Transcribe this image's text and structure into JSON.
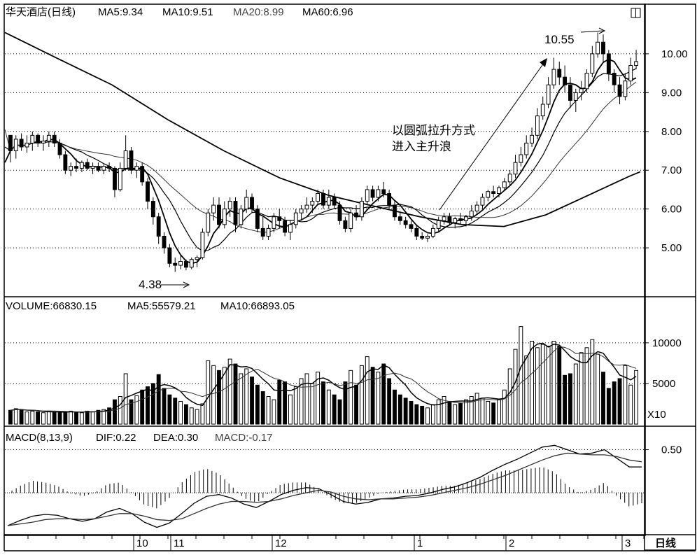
{
  "header": {
    "title": "华天酒店(日线)",
    "ma5": "MA5:9.34",
    "ma10": "MA10:9.51",
    "ma20": "MA20:8.99",
    "ma60": "MA60:6.96"
  },
  "volume_header": {
    "label": "VOLUME:66830.15",
    "ma5": "MA5:55579.21",
    "ma10": "MA10:66893.05"
  },
  "macd_header": {
    "label": "MACD(8,13,9)",
    "dif": "DIF:0.22",
    "dea": "DEA:0.30",
    "macd": "MACD:-0.17"
  },
  "annotations": {
    "low": "4.38",
    "high": "10.55",
    "text_line1": "以圆弧拉升方式",
    "text_line2": "进入主升浪"
  },
  "price_axis": [
    "10.00",
    "9.00",
    "8.00",
    "7.00",
    "6.00",
    "5.00"
  ],
  "volume_axis": [
    "10000",
    "5000"
  ],
  "volume_unit": "X10",
  "macd_axis": [
    "0.50"
  ],
  "period_label": "日线",
  "month_labels": [
    "10",
    "11",
    "12",
    "1",
    "2",
    "3"
  ],
  "colors": {
    "up": "#000000",
    "down": "#000000",
    "grid": "#000000"
  },
  "chart_data": {
    "type": "candlestick",
    "price_ylim": [
      4.1,
      10.9
    ],
    "price_ticks": [
      5,
      6,
      7,
      8,
      9,
      10
    ],
    "volume_ylim": [
      0,
      13000
    ],
    "volume_ticks": [
      5000,
      10000
    ],
    "macd_ylim": [
      -0.42,
      0.65
    ],
    "macd_ticks": [
      0.5
    ],
    "grid": "dotted",
    "ohlc": [
      [
        7.9,
        7.9,
        7.2,
        7.5
      ],
      [
        7.5,
        7.9,
        7.3,
        7.8
      ],
      [
        7.8,
        7.95,
        7.5,
        7.6
      ],
      [
        7.6,
        7.9,
        7.45,
        7.7
      ],
      [
        7.7,
        8.0,
        7.5,
        7.9
      ],
      [
        7.9,
        7.95,
        7.6,
        7.7
      ],
      [
        7.7,
        7.9,
        7.5,
        7.75
      ],
      [
        7.75,
        8.0,
        7.6,
        7.9
      ],
      [
        7.9,
        8.0,
        7.6,
        7.7
      ],
      [
        7.7,
        7.8,
        7.3,
        7.4
      ],
      [
        7.4,
        7.5,
        6.9,
        7.0
      ],
      [
        7.0,
        7.2,
        6.85,
        7.1
      ],
      [
        7.1,
        7.3,
        6.95,
        7.05
      ],
      [
        7.05,
        7.25,
        6.95,
        7.2
      ],
      [
        7.2,
        7.3,
        7.0,
        7.05
      ],
      [
        7.05,
        7.2,
        6.9,
        7.1
      ],
      [
        7.1,
        7.2,
        6.95,
        7.0
      ],
      [
        7.0,
        7.15,
        6.9,
        7.1
      ],
      [
        7.1,
        7.2,
        6.95,
        7.05
      ],
      [
        7.05,
        7.1,
        6.3,
        6.5
      ],
      [
        6.5,
        7.2,
        6.45,
        7.05
      ],
      [
        7.05,
        7.9,
        7.0,
        7.5
      ],
      [
        7.5,
        7.6,
        6.9,
        7.0
      ],
      [
        7.0,
        7.2,
        6.8,
        7.1
      ],
      [
        7.1,
        7.2,
        6.6,
        6.7
      ],
      [
        6.7,
        6.8,
        6.0,
        6.2
      ],
      [
        6.2,
        6.3,
        5.6,
        5.8
      ],
      [
        5.8,
        5.9,
        5.1,
        5.3
      ],
      [
        5.3,
        5.4,
        4.85,
        5.0
      ],
      [
        5.0,
        5.1,
        4.5,
        4.6
      ],
      [
        4.6,
        4.75,
        4.38,
        4.55
      ],
      [
        4.55,
        4.8,
        4.45,
        4.65
      ],
      [
        4.65,
        4.7,
        4.42,
        4.5
      ],
      [
        4.5,
        4.75,
        4.45,
        4.7
      ],
      [
        4.7,
        4.8,
        4.5,
        4.75
      ],
      [
        4.75,
        5.5,
        4.7,
        5.4
      ],
      [
        5.4,
        6.0,
        5.3,
        5.9
      ],
      [
        5.9,
        6.3,
        5.7,
        6.1
      ],
      [
        6.1,
        6.3,
        5.5,
        5.6
      ],
      [
        5.6,
        6.2,
        5.5,
        6.0
      ],
      [
        6.0,
        6.3,
        5.8,
        6.2
      ],
      [
        6.2,
        6.3,
        5.4,
        5.6
      ],
      [
        5.6,
        6.1,
        5.5,
        6.0
      ],
      [
        6.0,
        6.5,
        5.9,
        6.3
      ],
      [
        6.3,
        6.4,
        5.9,
        6.0
      ],
      [
        6.0,
        6.1,
        5.4,
        5.5
      ],
      [
        5.5,
        5.8,
        5.2,
        5.3
      ],
      [
        5.3,
        5.6,
        5.2,
        5.5
      ],
      [
        5.5,
        5.9,
        5.4,
        5.8
      ],
      [
        5.8,
        6.0,
        5.5,
        5.7
      ],
      [
        5.7,
        5.8,
        5.3,
        5.4
      ],
      [
        5.4,
        5.7,
        5.2,
        5.6
      ],
      [
        5.6,
        6.0,
        5.5,
        5.9
      ],
      [
        5.9,
        6.1,
        5.7,
        6.0
      ],
      [
        6.0,
        6.3,
        5.9,
        6.1
      ],
      [
        6.1,
        6.3,
        5.9,
        6.2
      ],
      [
        6.2,
        6.5,
        6.1,
        6.4
      ],
      [
        6.4,
        6.5,
        6.0,
        6.1
      ],
      [
        6.1,
        6.5,
        6.0,
        6.3
      ],
      [
        6.3,
        6.4,
        6.0,
        6.1
      ],
      [
        6.1,
        6.2,
        5.6,
        5.7
      ],
      [
        5.7,
        5.8,
        5.4,
        5.5
      ],
      [
        5.5,
        6.0,
        5.4,
        5.9
      ],
      [
        5.9,
        6.1,
        5.7,
        5.8
      ],
      [
        5.8,
        6.3,
        5.7,
        6.2
      ],
      [
        6.2,
        6.6,
        6.1,
        6.5
      ],
      [
        6.5,
        6.6,
        6.2,
        6.3
      ],
      [
        6.3,
        6.6,
        6.2,
        6.5
      ],
      [
        6.5,
        6.7,
        6.3,
        6.4
      ],
      [
        6.4,
        6.5,
        6.0,
        6.1
      ],
      [
        6.1,
        6.2,
        5.7,
        5.8
      ],
      [
        5.8,
        5.9,
        5.6,
        5.7
      ],
      [
        5.7,
        5.8,
        5.5,
        5.6
      ],
      [
        5.6,
        5.7,
        5.4,
        5.5
      ],
      [
        5.5,
        5.6,
        5.2,
        5.3
      ],
      [
        5.3,
        5.4,
        5.2,
        5.25
      ],
      [
        5.25,
        5.35,
        5.15,
        5.3
      ],
      [
        5.3,
        5.6,
        5.25,
        5.5
      ],
      [
        5.5,
        5.8,
        5.4,
        5.7
      ],
      [
        5.7,
        5.9,
        5.6,
        5.8
      ],
      [
        5.8,
        5.9,
        5.6,
        5.65
      ],
      [
        5.65,
        5.8,
        5.5,
        5.75
      ],
      [
        5.75,
        5.9,
        5.6,
        5.7
      ],
      [
        5.7,
        5.85,
        5.55,
        5.8
      ],
      [
        5.8,
        6.1,
        5.7,
        5.95
      ],
      [
        5.95,
        6.2,
        5.85,
        6.1
      ],
      [
        6.1,
        6.4,
        6.0,
        6.3
      ],
      [
        6.3,
        6.5,
        6.2,
        6.45
      ],
      [
        6.45,
        6.6,
        6.3,
        6.4
      ],
      [
        6.4,
        6.6,
        6.3,
        6.55
      ],
      [
        6.55,
        6.8,
        6.5,
        6.7
      ],
      [
        6.7,
        7.0,
        6.6,
        6.9
      ],
      [
        6.9,
        7.4,
        6.8,
        7.2
      ],
      [
        7.2,
        7.6,
        7.1,
        7.4
      ],
      [
        7.4,
        7.9,
        7.3,
        7.7
      ],
      [
        7.7,
        8.1,
        7.6,
        7.9
      ],
      [
        7.9,
        8.6,
        7.8,
        8.4
      ],
      [
        8.4,
        8.9,
        8.3,
        8.7
      ],
      [
        8.7,
        9.4,
        8.6,
        9.2
      ],
      [
        9.2,
        9.9,
        9.1,
        9.6
      ],
      [
        9.6,
        9.8,
        9.2,
        9.4
      ],
      [
        9.4,
        9.7,
        9.0,
        9.2
      ],
      [
        9.2,
        9.4,
        8.6,
        8.8
      ],
      [
        8.8,
        9.1,
        8.5,
        9.0
      ],
      [
        9.0,
        9.3,
        8.8,
        9.1
      ],
      [
        9.1,
        9.6,
        9.0,
        9.5
      ],
      [
        9.5,
        10.2,
        9.4,
        10.0
      ],
      [
        10.0,
        10.55,
        9.9,
        10.3
      ],
      [
        10.3,
        10.5,
        9.8,
        10.0
      ],
      [
        10.0,
        10.1,
        9.3,
        9.5
      ],
      [
        9.5,
        9.6,
        9.0,
        9.2
      ],
      [
        9.2,
        9.4,
        8.7,
        8.9
      ],
      [
        8.9,
        9.5,
        8.8,
        9.3
      ],
      [
        9.3,
        9.9,
        9.2,
        9.7
      ],
      [
        9.7,
        10.1,
        9.6,
        9.8
      ]
    ],
    "volume": [
      1700,
      1900,
      1800,
      1500,
      1600,
      1500,
      1400,
      1600,
      1500,
      1400,
      1500,
      1600,
      1500,
      1400,
      1600,
      1500,
      1700,
      1800,
      2000,
      3000,
      3400,
      6200,
      3000,
      3500,
      4200,
      4600,
      5000,
      6100,
      4400,
      3600,
      3200,
      2800,
      2400,
      2000,
      1800,
      2500,
      7800,
      7200,
      6600,
      7000,
      8000,
      7400,
      6200,
      6800,
      5800,
      4800,
      4000,
      3400,
      3000,
      5400,
      5200,
      3600,
      4600,
      5600,
      6200,
      5000,
      6400,
      5200,
      4200,
      3600,
      3000,
      5200,
      6600,
      4800,
      7200,
      8300,
      7000,
      6400,
      7400,
      5600,
      4200,
      3600,
      3200,
      2800,
      2400,
      2200,
      2000,
      2400,
      3000,
      3400,
      2800,
      2400,
      2600,
      3000,
      3400,
      3800,
      3200,
      2800,
      2600,
      3000,
      4200,
      6800,
      9200,
      12000,
      8400,
      10200,
      9400,
      9800,
      9600,
      10200,
      9600,
      6000,
      6200,
      7400,
      8800,
      9400,
      10400,
      8600,
      6400,
      4400,
      5200,
      5600,
      7200,
      4800,
      6600
    ],
    "price_ma_lines": {
      "MA5": {
        "start": [
          7.2,
          7.7
        ],
        "end": [
          9.34,
          9.3
        ]
      },
      "MA10": {
        "start": [
          7.6,
          7.75
        ],
        "end": [
          9.51,
          9.45
        ]
      },
      "MA20": {
        "start": [
          8.05,
          8.0
        ],
        "end": [
          8.99,
          8.95
        ]
      },
      "MA60": {
        "start": [
          10.55,
          10.5
        ],
        "end": [
          6.96,
          6.9
        ]
      }
    },
    "volume_ma": {
      "MA5": 55579.21,
      "MA10": 66893.05
    },
    "macd": {
      "dif": [
        -0.38,
        -0.32,
        -0.27,
        -0.25,
        -0.26,
        -0.3,
        -0.33,
        -0.3,
        -0.22,
        -0.18,
        -0.24,
        -0.34,
        -0.4,
        -0.35,
        -0.24,
        -0.12,
        -0.04,
        -0.02,
        -0.06,
        -0.13,
        -0.17,
        -0.1,
        -0.02,
        0.03,
        0.06,
        0.05,
        -0.02,
        -0.1,
        -0.13,
        -0.11,
        -0.07,
        -0.06,
        -0.04,
        -0.03,
        0.0,
        0.04,
        0.07,
        0.12,
        0.18,
        0.26,
        0.33,
        0.39,
        0.46,
        0.53,
        0.55,
        0.5,
        0.45,
        0.46,
        0.5,
        0.4,
        0.3,
        0.3
      ],
      "dea": [
        -0.38,
        -0.36,
        -0.34,
        -0.31,
        -0.3,
        -0.3,
        -0.31,
        -0.3,
        -0.27,
        -0.24,
        -0.24,
        -0.27,
        -0.31,
        -0.32,
        -0.3,
        -0.24,
        -0.18,
        -0.13,
        -0.1,
        -0.1,
        -0.11,
        -0.1,
        -0.07,
        -0.03,
        0.0,
        0.03,
        0.01,
        -0.04,
        -0.07,
        -0.08,
        -0.07,
        -0.07,
        -0.06,
        -0.05,
        -0.03,
        0.0,
        0.03,
        0.06,
        0.1,
        0.15,
        0.2,
        0.26,
        0.32,
        0.38,
        0.43,
        0.46,
        0.45,
        0.44,
        0.44,
        0.42,
        0.38,
        0.36
      ]
    }
  }
}
